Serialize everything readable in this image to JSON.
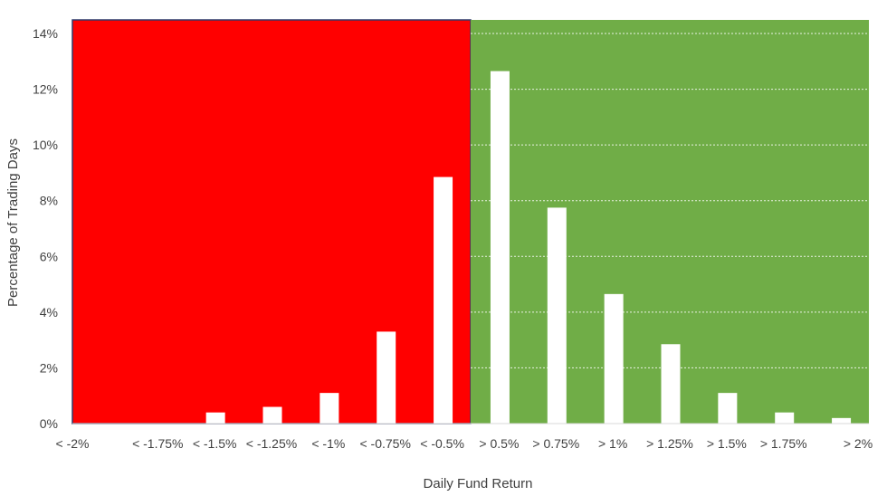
{
  "chart_data": {
    "type": "bar",
    "title": "",
    "xlabel": "Daily Fund Return",
    "ylabel": "Percentage of Trading Days",
    "ylim": [
      0,
      14
    ],
    "y_ticks": [
      "0%",
      "2%",
      "4%",
      "6%",
      "8%",
      "10%",
      "12%",
      "14%"
    ],
    "y_tick_values": [
      0,
      2,
      4,
      6,
      8,
      10,
      12,
      14
    ],
    "grid": "horizontal dotted",
    "categories": [
      "< -2%",
      "< -1.75%",
      "< -1.5%",
      "< -1.25%",
      "< -1%",
      "< -0.75%",
      "< -0.5%",
      "> 0.5%",
      "> 0.75%",
      "> 1%",
      "> 1.25%",
      "> 1.5%",
      "> 1.75%",
      "> 2%"
    ],
    "values": [
      0,
      0,
      0.4,
      0.6,
      1.1,
      3.3,
      8.85,
      12.65,
      7.75,
      4.65,
      2.85,
      1.1,
      0.4,
      0.2
    ],
    "bar_color": "#ffffff",
    "negative_region_color": "#ff0000",
    "positive_region_color": "#70ad47",
    "region_split_after_index": 6
  }
}
